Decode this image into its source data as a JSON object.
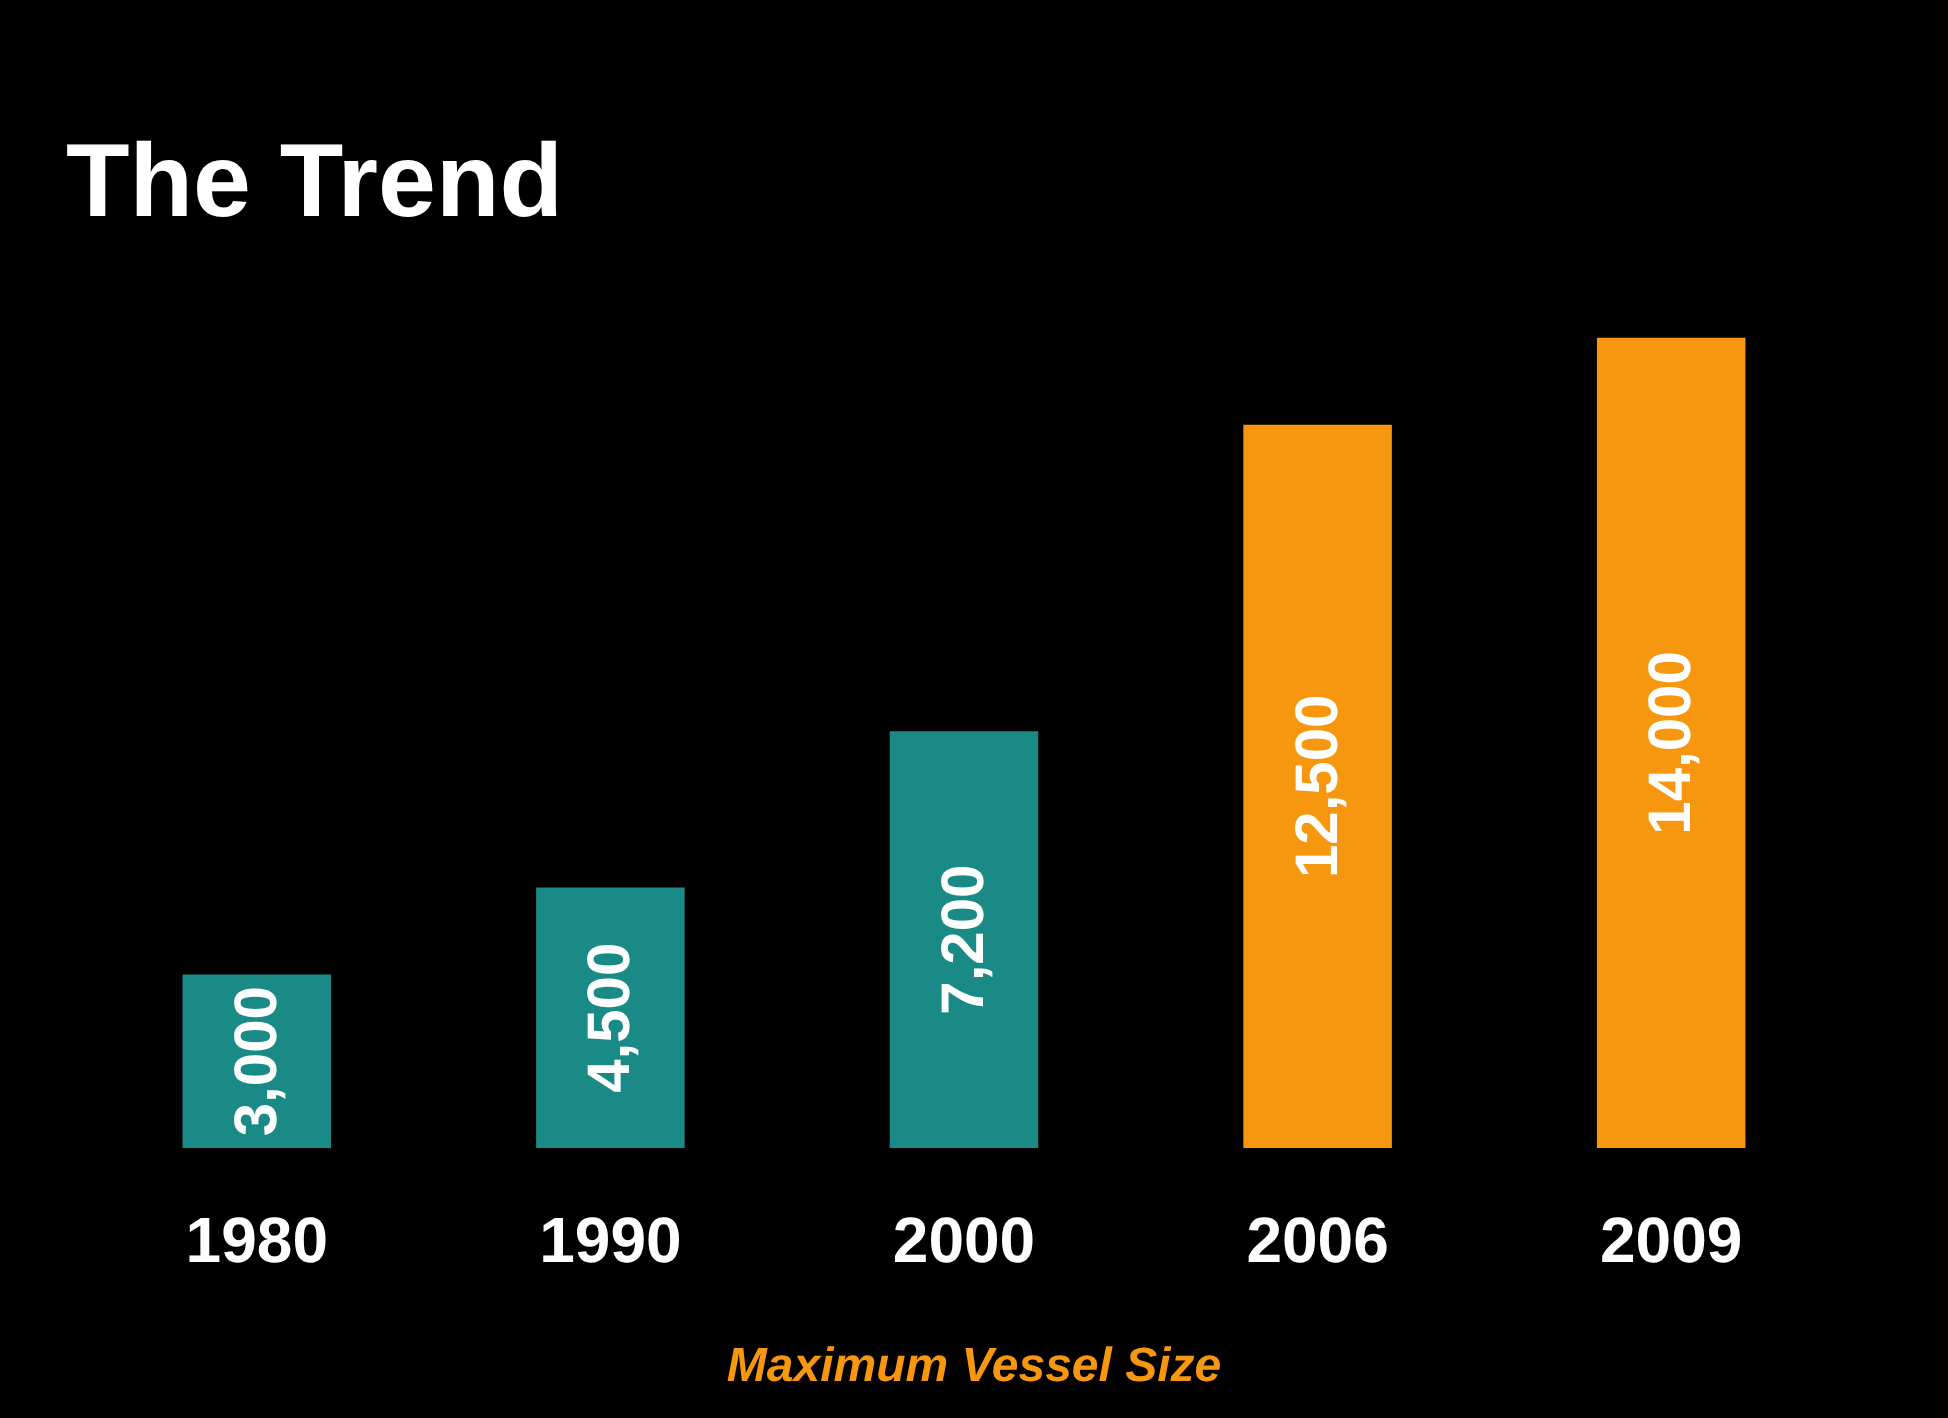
{
  "chart_data": {
    "type": "bar",
    "title": "The Trend",
    "xlabel": "Maximum Vessel Size",
    "categories": [
      "1980",
      "1990",
      "2000",
      "2006",
      "2009"
    ],
    "values": [
      3000,
      4500,
      7200,
      12500,
      14000
    ],
    "colors": [
      "#1a8a86",
      "#1a8a86",
      "#1a8a86",
      "#f7960f",
      "#f7960f"
    ],
    "value_labels": [
      "3,000",
      "4,500",
      "7,200",
      "12,500",
      "14,000"
    ]
  }
}
